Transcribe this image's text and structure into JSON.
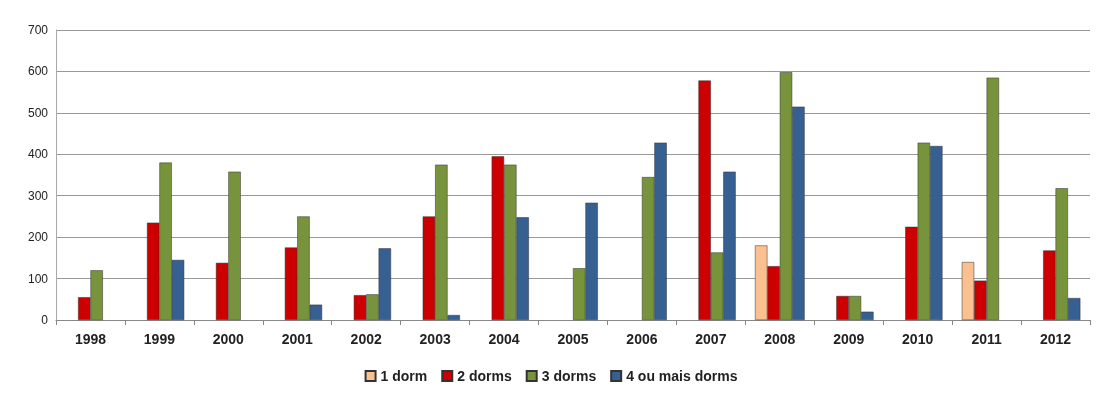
{
  "chart_data": {
    "type": "bar",
    "categories": [
      "1998",
      "1999",
      "2000",
      "2001",
      "2002",
      "2003",
      "2004",
      "2005",
      "2006",
      "2007",
      "2008",
      "2009",
      "2010",
      "2011",
      "2012"
    ],
    "series": [
      {
        "name": "1 dorm",
        "color": "#fac090",
        "values": [
          null,
          null,
          null,
          null,
          null,
          null,
          null,
          null,
          null,
          null,
          180,
          null,
          null,
          140,
          null
        ]
      },
      {
        "name": "2 dorms",
        "color": "#cc0000",
        "values": [
          55,
          235,
          138,
          175,
          60,
          250,
          395,
          null,
          null,
          578,
          130,
          58,
          225,
          95,
          168
        ]
      },
      {
        "name": "3 dorms",
        "color": "#77933c",
        "values": [
          120,
          380,
          358,
          250,
          62,
          375,
          375,
          125,
          345,
          163,
          598,
          58,
          428,
          585,
          318
        ]
      },
      {
        "name": "4 ou mais dorms",
        "color": "#376092",
        "values": [
          null,
          145,
          null,
          37,
          173,
          12,
          248,
          283,
          428,
          358,
          515,
          20,
          420,
          null,
          53
        ]
      }
    ],
    "ylim": [
      0,
      700
    ],
    "yticks": [
      0,
      100,
      200,
      300,
      400,
      500,
      600,
      700
    ],
    "grid": "y",
    "legend": "bottom"
  }
}
